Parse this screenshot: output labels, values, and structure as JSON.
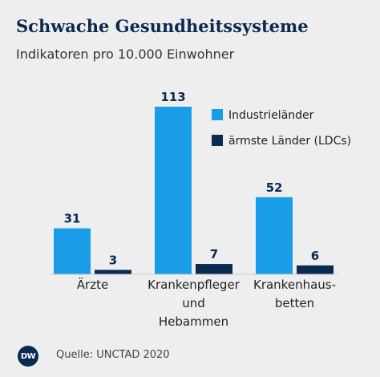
{
  "title": "Schwache Gesundheitssysteme",
  "subtitle": "Indikatoren pro 10.000 Einwohner",
  "source": "Quelle: UNCTAD 2020",
  "logo_text": "DW",
  "colors": {
    "series_1": "#1a9de8",
    "series_2": "#0b2a52"
  },
  "chart_data": {
    "type": "bar",
    "categories": [
      [
        "Ärzte"
      ],
      [
        "Krankenpfleger",
        "und",
        "Hebammen"
      ],
      [
        "Krankenhaus-",
        "betten"
      ]
    ],
    "series": [
      {
        "name": "Industrieländer",
        "values": [
          31,
          113,
          52
        ],
        "labels": [
          "31",
          "113",
          "52"
        ]
      },
      {
        "name": "ärmste Länder (LDCs)",
        "values": [
          3,
          7,
          6
        ],
        "labels": [
          "3",
          "7",
          "6"
        ]
      }
    ],
    "legend_position": "top-right",
    "grid": false,
    "ylim": [
      0,
      113
    ]
  }
}
